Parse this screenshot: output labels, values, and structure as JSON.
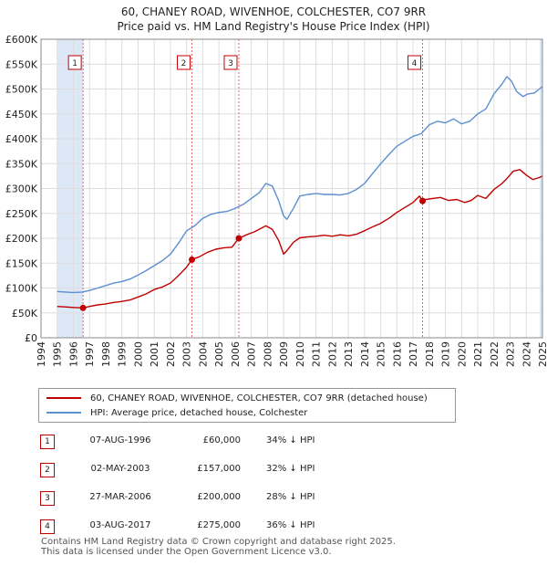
{
  "title_line1": "60, CHANEY ROAD, WIVENHOE, COLCHESTER, CO7 9RR",
  "title_line2": "Price paid vs. HM Land Registry's House Price Index (HPI)",
  "chart_data": {
    "type": "line",
    "xlim": [
      1994,
      2025
    ],
    "ylim": [
      0,
      600000
    ],
    "y_ticks": [
      0,
      50000,
      100000,
      150000,
      200000,
      250000,
      300000,
      350000,
      400000,
      450000,
      500000,
      550000,
      600000
    ],
    "y_tick_labels": [
      "£0",
      "£50K",
      "£100K",
      "£150K",
      "£200K",
      "£250K",
      "£300K",
      "£350K",
      "£400K",
      "£450K",
      "£500K",
      "£550K",
      "£600K"
    ],
    "x_ticks": [
      1994,
      1995,
      1996,
      1997,
      1998,
      1999,
      2000,
      2001,
      2002,
      2003,
      2004,
      2005,
      2006,
      2007,
      2008,
      2009,
      2010,
      2011,
      2012,
      2013,
      2014,
      2015,
      2016,
      2017,
      2018,
      2019,
      2020,
      2021,
      2022,
      2023,
      2024,
      2025
    ],
    "x_tick_labels": [
      "1994",
      "1995",
      "1996",
      "1997",
      "1998",
      "1999",
      "2000",
      "2001",
      "2002",
      "2003",
      "2004",
      "2005",
      "2006",
      "2007",
      "2008",
      "2009",
      "2010",
      "2011",
      "2012",
      "2013",
      "2014",
      "2015",
      "2016",
      "2017",
      "2018",
      "2019",
      "2020",
      "2021",
      "2022",
      "2023",
      "2024",
      "2025"
    ],
    "data_start": 1995.0,
    "data_end": 2025.0,
    "colors": {
      "price_line": "#c00000",
      "hpi_line": "#5b8fd0",
      "shade": "#dde8f7",
      "vline": "#e06060",
      "grid": "#dddddd"
    },
    "series": [
      {
        "name": "60, CHANEY ROAD, WIVENHOE, COLCHESTER, CO7 9RR (detached house)",
        "x": [
          1995.0,
          1995.5,
          1996.0,
          1996.6,
          1997.0,
          1997.5,
          1998.0,
          1998.5,
          1999.0,
          1999.5,
          2000.0,
          2000.5,
          2001.0,
          2001.5,
          2002.0,
          2002.5,
          2003.0,
          2003.33,
          2003.8,
          2004.3,
          2004.8,
          2005.3,
          2005.8,
          2006.23,
          2006.7,
          2007.2,
          2007.6,
          2007.9,
          2008.3,
          2008.7,
          2009.0,
          2009.2,
          2009.6,
          2010.0,
          2010.5,
          2011.0,
          2011.5,
          2012.0,
          2012.5,
          2013.0,
          2013.5,
          2014.0,
          2014.5,
          2015.0,
          2015.5,
          2016.0,
          2016.5,
          2017.0,
          2017.4,
          2017.59,
          2017.8,
          2018.2,
          2018.7,
          2019.2,
          2019.7,
          2020.2,
          2020.6,
          2021.0,
          2021.5,
          2022.0,
          2022.5,
          2022.8,
          2023.2,
          2023.6,
          2024.0,
          2024.4,
          2024.8,
          2025.0
        ],
        "values": [
          63000,
          62000,
          61000,
          60000,
          63000,
          66000,
          68000,
          71000,
          73000,
          76000,
          82000,
          88000,
          97000,
          102000,
          110000,
          125000,
          142000,
          157000,
          163000,
          172000,
          178000,
          181000,
          182000,
          200000,
          207000,
          213000,
          220000,
          225000,
          218000,
          195000,
          168000,
          175000,
          192000,
          201000,
          203000,
          204000,
          206000,
          204000,
          207000,
          205000,
          208000,
          215000,
          223000,
          230000,
          240000,
          252000,
          262000,
          272000,
          285000,
          275000,
          278000,
          280000,
          282000,
          276000,
          278000,
          272000,
          276000,
          286000,
          280000,
          298000,
          310000,
          320000,
          335000,
          338000,
          327000,
          318000,
          322000,
          325000
        ]
      },
      {
        "name": "HPI: Average price, detached house, Colchester",
        "x": [
          1995.0,
          1995.5,
          1996.0,
          1996.5,
          1997.0,
          1997.5,
          1998.0,
          1998.5,
          1999.0,
          1999.5,
          2000.0,
          2000.5,
          2001.0,
          2001.5,
          2002.0,
          2002.5,
          2003.0,
          2003.5,
          2004.0,
          2004.5,
          2005.0,
          2005.5,
          2006.0,
          2006.5,
          2007.0,
          2007.5,
          2007.9,
          2008.3,
          2008.7,
          2009.0,
          2009.2,
          2009.6,
          2010.0,
          2010.5,
          2011.0,
          2011.5,
          2012.0,
          2012.5,
          2013.0,
          2013.5,
          2014.0,
          2014.5,
          2015.0,
          2015.5,
          2016.0,
          2016.5,
          2017.0,
          2017.5,
          2018.0,
          2018.5,
          2019.0,
          2019.5,
          2020.0,
          2020.5,
          2021.0,
          2021.5,
          2022.0,
          2022.5,
          2022.8,
          2023.1,
          2023.4,
          2023.8,
          2024.1,
          2024.5,
          2024.8,
          2025.0
        ],
        "values": [
          93000,
          92000,
          91000,
          91500,
          95000,
          100000,
          105000,
          110000,
          113000,
          118000,
          126000,
          135000,
          145000,
          155000,
          168000,
          190000,
          215000,
          225000,
          240000,
          248000,
          252000,
          254000,
          260000,
          268000,
          280000,
          292000,
          310000,
          305000,
          275000,
          245000,
          238000,
          260000,
          285000,
          288000,
          290000,
          288000,
          288000,
          287000,
          290000,
          298000,
          310000,
          330000,
          350000,
          368000,
          385000,
          395000,
          405000,
          410000,
          428000,
          435000,
          432000,
          440000,
          430000,
          435000,
          450000,
          460000,
          490000,
          510000,
          525000,
          515000,
          495000,
          485000,
          490000,
          492000,
          500000,
          505000
        ]
      }
    ],
    "sales": [
      {
        "num": "1",
        "x": 1996.6,
        "price": 60000
      },
      {
        "num": "2",
        "x": 2003.33,
        "price": 157000
      },
      {
        "num": "3",
        "x": 2006.23,
        "price": 200000
      },
      {
        "num": "4",
        "x": 2017.59,
        "price": 275000
      }
    ]
  },
  "legend": {
    "items": [
      {
        "label": "60, CHANEY ROAD, WIVENHOE, COLCHESTER, CO7 9RR (detached house)",
        "color": "#c00000"
      },
      {
        "label": "HPI: Average price, detached house, Colchester",
        "color": "#5b8fd0"
      }
    ]
  },
  "sales_table": [
    {
      "num": "1",
      "date": "07-AUG-1996",
      "price": "£60,000",
      "hpi": "34% ↓ HPI"
    },
    {
      "num": "2",
      "date": "02-MAY-2003",
      "price": "£157,000",
      "hpi": "32% ↓ HPI"
    },
    {
      "num": "3",
      "date": "27-MAR-2006",
      "price": "£200,000",
      "hpi": "28% ↓ HPI"
    },
    {
      "num": "4",
      "date": "03-AUG-2017",
      "price": "£275,000",
      "hpi": "36% ↓ HPI"
    }
  ],
  "footer": {
    "line1": "Contains HM Land Registry data © Crown copyright and database right 2025.",
    "line2": "This data is licensed under the Open Government Licence v3.0."
  }
}
